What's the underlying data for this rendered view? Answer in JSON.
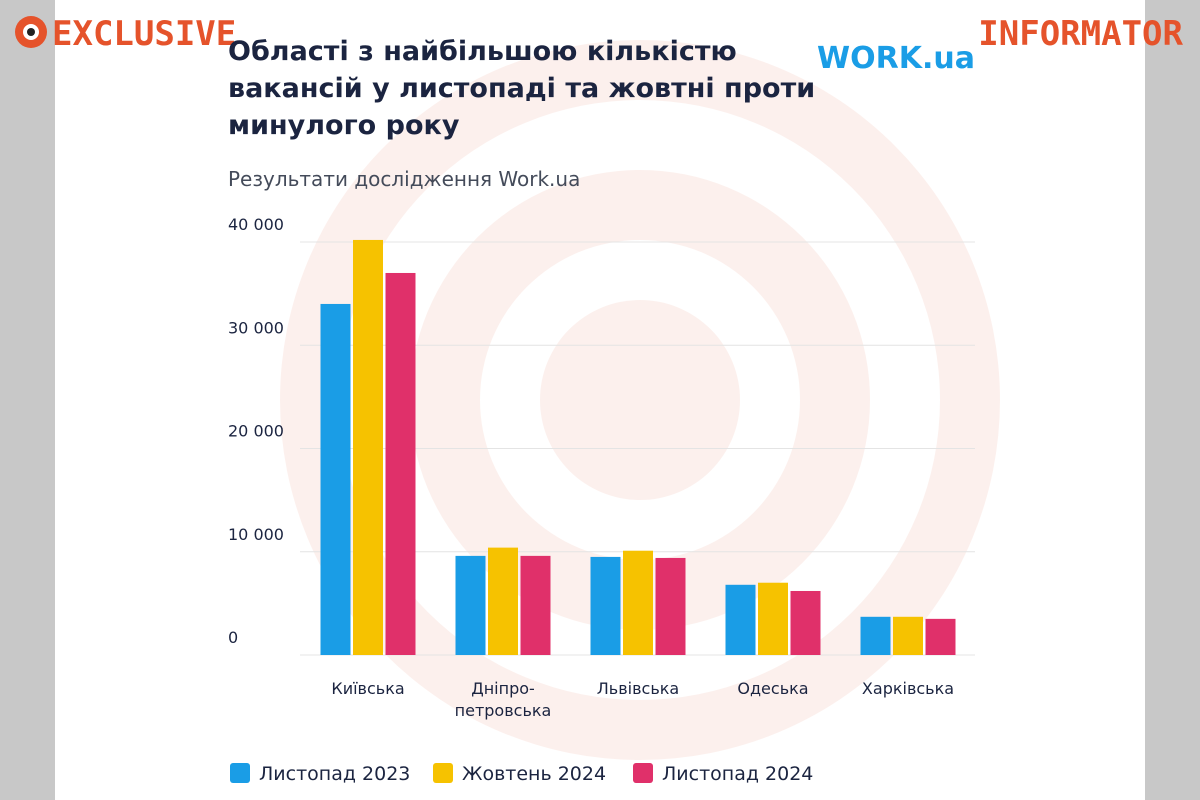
{
  "header": {
    "left": "EXCLUSIVE",
    "right": "INFORMATOR"
  },
  "chart_data": {
    "type": "bar",
    "title": "Області з найбільшою кількістю\nвакансій у листопаді та жовтні проти\nминулого року",
    "subtitle": "Результати дослідження Work.ua",
    "logo": "WORK.ua",
    "categories": [
      "Київська",
      "Дніпро-\nпетровська",
      "Львівська",
      "Одеська",
      "Харківська"
    ],
    "series": [
      {
        "name": "Листопад 2023",
        "color": "#1a9de6",
        "values": [
          34000,
          9600,
          9500,
          6800,
          3700
        ]
      },
      {
        "name": "Жовтень 2024",
        "color": "#f6c200",
        "values": [
          40200,
          10400,
          10100,
          7000,
          3700
        ]
      },
      {
        "name": "Листопад 2024",
        "color": "#e0306a",
        "values": [
          37000,
          9600,
          9400,
          6200,
          3500
        ]
      }
    ],
    "ylim": [
      0,
      40000
    ],
    "yticks": [
      0,
      {
        "value": 10000,
        "label": "10 000"
      },
      {
        "value": 20000,
        "label": "20 000"
      },
      {
        "value": 30000,
        "label": "30 000"
      },
      {
        "value": 40000,
        "label": "40 000"
      }
    ],
    "grid": true
  }
}
